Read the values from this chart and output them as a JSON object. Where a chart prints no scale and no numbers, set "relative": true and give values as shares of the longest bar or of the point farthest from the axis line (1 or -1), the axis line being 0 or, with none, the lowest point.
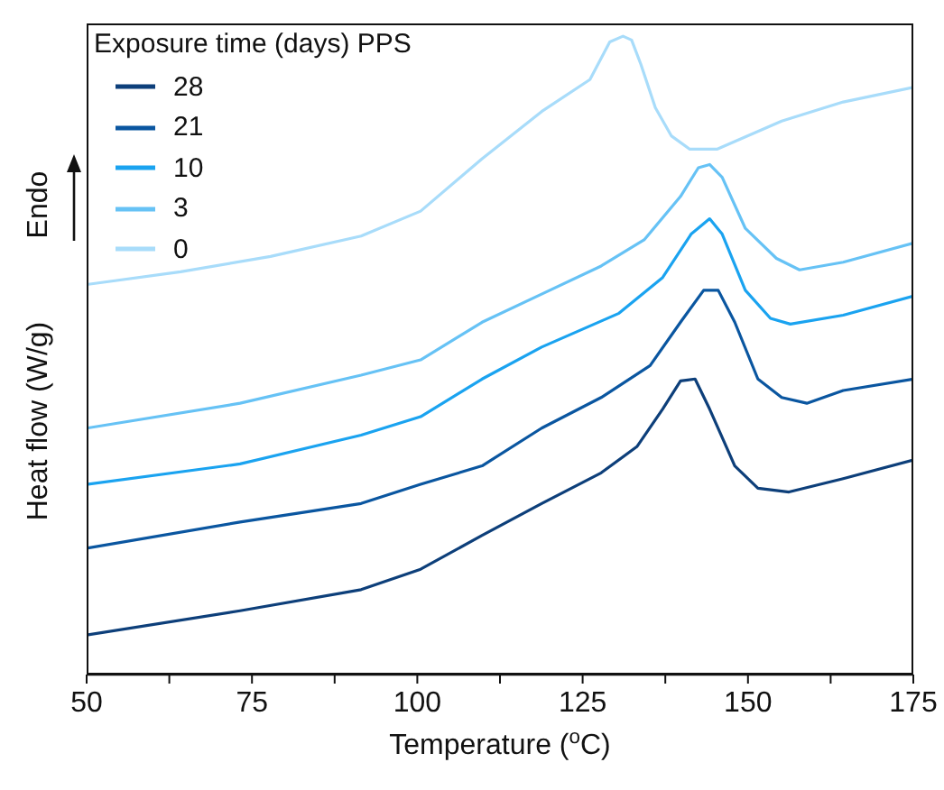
{
  "chart_data": {
    "type": "line",
    "xlabel": "Temperature ($^{o}$C)",
    "ylabel": "Heat flow (W/g)",
    "annotations": [
      "Endo"
    ],
    "legend_title": "Exposure time (days) PPS",
    "legend": "top left",
    "relative": true,
    "grid": false,
    "marker": "none",
    "line_style": "solid",
    "xlim": [
      50,
      175
    ],
    "xticks": [
      50,
      {
        "value": 62.5,
        "label": null
      },
      75,
      {
        "value": 87.5,
        "label": null
      },
      100,
      {
        "value": 112.5,
        "label": null
      },
      125,
      {
        "value": 137.5,
        "label": null
      },
      150,
      {
        "value": 162.5,
        "label": null
      },
      175
    ],
    "series": [
      {
        "name": "28",
        "color": "#0d3f7a",
        "x": [
          50,
          73.2,
          91.5,
          100.5,
          109.8,
          118.8,
          127.8,
          133.2,
          137.1,
          139.8,
          142.0,
          144.2,
          148.0,
          151.5,
          156.2,
          164.4,
          175
        ],
        "values": [
          0.062,
          0.1,
          0.133,
          0.165,
          0.218,
          0.268,
          0.316,
          0.357,
          0.416,
          0.46,
          0.463,
          0.416,
          0.327,
          0.292,
          0.286,
          0.307,
          0.336
        ]
      },
      {
        "name": "21",
        "color": "#0a56a0",
        "x": [
          50,
          73.2,
          91.5,
          100.5,
          109.8,
          118.8,
          127.8,
          135.2,
          139.8,
          143.3,
          145.5,
          148.0,
          151.5,
          155.1,
          158.9,
          164.4,
          175
        ],
        "values": [
          0.198,
          0.239,
          0.268,
          0.298,
          0.327,
          0.386,
          0.434,
          0.484,
          0.552,
          0.602,
          0.602,
          0.552,
          0.463,
          0.434,
          0.425,
          0.445,
          0.463
        ]
      },
      {
        "name": "10",
        "color": "#1aa3f0",
        "x": [
          50,
          73.2,
          91.5,
          100.5,
          109.8,
          118.8,
          130.5,
          137.1,
          141.4,
          144.2,
          146.1,
          149.6,
          153.4,
          156.4,
          164.4,
          175
        ],
        "values": [
          0.298,
          0.33,
          0.375,
          0.404,
          0.463,
          0.513,
          0.566,
          0.622,
          0.69,
          0.714,
          0.69,
          0.602,
          0.558,
          0.549,
          0.563,
          0.593
        ]
      },
      {
        "name": "3",
        "color": "#66c2f5",
        "x": [
          50,
          73.2,
          91.5,
          100.5,
          109.8,
          118.8,
          127.8,
          134.3,
          139.8,
          142.5,
          144.2,
          146.1,
          149.6,
          154.3,
          157.8,
          164.4,
          175
        ],
        "values": [
          0.386,
          0.425,
          0.469,
          0.493,
          0.552,
          0.596,
          0.64,
          0.681,
          0.749,
          0.794,
          0.799,
          0.779,
          0.699,
          0.652,
          0.634,
          0.646,
          0.676
        ]
      },
      {
        "name": "0",
        "color": "#a8dcfa",
        "x": [
          50,
          64.2,
          77.8,
          91.5,
          100.5,
          109.8,
          118.8,
          126.1,
          129.1,
          131.1,
          132.4,
          133.8,
          136.0,
          138.4,
          141.2,
          145.3,
          155.1,
          164.4,
          175
        ],
        "values": [
          0.611,
          0.631,
          0.655,
          0.687,
          0.726,
          0.808,
          0.882,
          0.932,
          0.991,
          1,
          0.994,
          0.956,
          0.888,
          0.844,
          0.823,
          0.823,
          0.867,
          0.897,
          0.92
        ]
      }
    ]
  }
}
